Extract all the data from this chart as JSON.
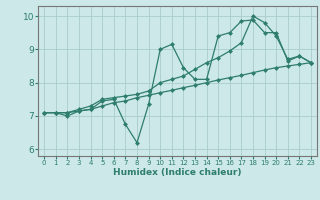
{
  "title": "",
  "xlabel": "Humidex (Indice chaleur)",
  "ylabel": "",
  "xlim": [
    -0.5,
    23.5
  ],
  "ylim": [
    5.8,
    10.3
  ],
  "yticks": [
    6,
    7,
    8,
    9,
    10
  ],
  "xticks": [
    0,
    1,
    2,
    3,
    4,
    5,
    6,
    7,
    8,
    9,
    10,
    11,
    12,
    13,
    14,
    15,
    16,
    17,
    18,
    19,
    20,
    21,
    22,
    23
  ],
  "bg_color": "#cce8e8",
  "grid_color": "#aacccc",
  "line_color": "#2e7d6e",
  "line1_straight": {
    "x": [
      0,
      1,
      2,
      3,
      4,
      5,
      6,
      7,
      8,
      9,
      10,
      11,
      12,
      13,
      14,
      15,
      16,
      17,
      18,
      19,
      20,
      21,
      22,
      23
    ],
    "y": [
      7.1,
      7.1,
      7.1,
      7.15,
      7.2,
      7.3,
      7.4,
      7.45,
      7.55,
      7.62,
      7.7,
      7.77,
      7.85,
      7.92,
      8.0,
      8.08,
      8.15,
      8.22,
      8.3,
      8.38,
      8.45,
      8.5,
      8.55,
      8.6
    ]
  },
  "line2_zigzag": {
    "x": [
      0,
      1,
      2,
      3,
      4,
      5,
      6,
      7,
      8,
      9,
      10,
      11,
      12,
      13,
      14,
      15,
      16,
      17,
      18,
      19,
      20,
      21,
      22,
      23
    ],
    "y": [
      7.1,
      7.1,
      7.0,
      7.15,
      7.2,
      7.45,
      7.5,
      6.75,
      6.2,
      7.35,
      9.0,
      9.15,
      8.45,
      8.1,
      8.1,
      9.4,
      9.5,
      9.85,
      9.88,
      9.5,
      9.5,
      8.65,
      8.8,
      8.6
    ]
  },
  "line3_steep": {
    "x": [
      0,
      1,
      2,
      3,
      4,
      5,
      6,
      7,
      8,
      9,
      10,
      11,
      12,
      13,
      14,
      15,
      16,
      17,
      18,
      19,
      20,
      21,
      22,
      23
    ],
    "y": [
      7.1,
      7.1,
      7.1,
      7.2,
      7.3,
      7.5,
      7.55,
      7.6,
      7.65,
      7.75,
      8.0,
      8.1,
      8.2,
      8.4,
      8.6,
      8.75,
      8.95,
      9.2,
      10.0,
      9.8,
      9.4,
      8.7,
      8.8,
      8.6
    ]
  }
}
